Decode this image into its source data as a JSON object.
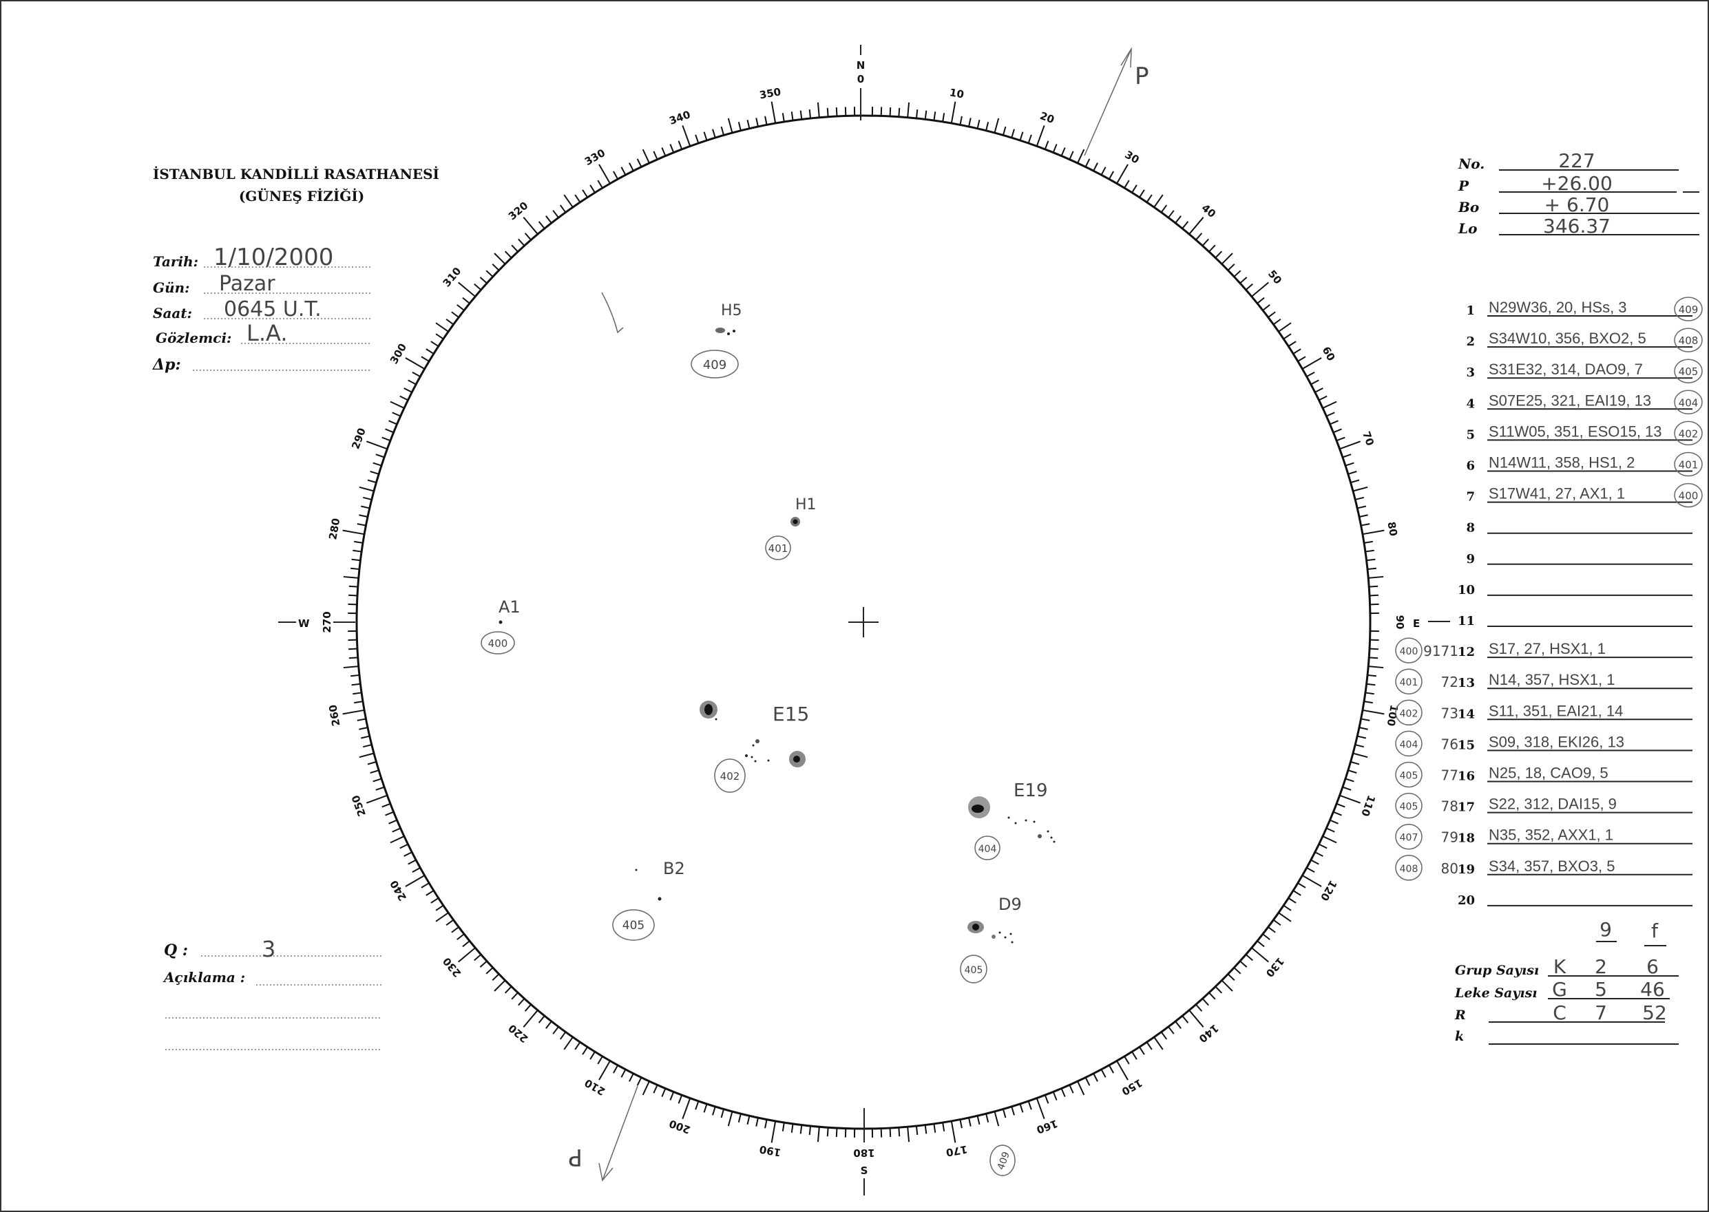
{
  "header": {
    "institution": "İSTANBUL KANDİLLİ RASATHANESİ",
    "department": "(GÜNEŞ FİZİĞİ)"
  },
  "fields": {
    "tarih_label": "Tarih:",
    "tarih_value": "1/10/2000",
    "gun_label": "Gün:",
    "gun_value": "Pazar",
    "saat_label": "Saat:",
    "saat_value": "0645 U.T.",
    "gozlemci_label": "Gözlemci:",
    "gozlemci_value": "L.A.",
    "dp_label": "Δp:",
    "q_label": "Q :",
    "q_value": "3",
    "aciklama_label": "Açıklama :"
  },
  "params": {
    "no_label": "No.",
    "no_value": "227",
    "p_label": "P",
    "p_value": "+26.00",
    "bo_label": "Bo",
    "bo_value": "+ 6.70",
    "lo_label": "Lo",
    "lo_value": "346.37"
  },
  "rows": [
    {
      "n": "1",
      "text": "N29W36, 20, HSs, 3",
      "code": "409",
      "side_code": "",
      "side_num": ""
    },
    {
      "n": "2",
      "text": "S34W10, 356, BXO2, 5",
      "code": "408",
      "side_code": "",
      "side_num": ""
    },
    {
      "n": "3",
      "text": "S31E32, 314, DAO9, 7",
      "code": "405",
      "side_code": "",
      "side_num": ""
    },
    {
      "n": "4",
      "text": "S07E25, 321, EAI19, 13",
      "code": "404",
      "side_code": "",
      "side_num": ""
    },
    {
      "n": "5",
      "text": "S11W05, 351, ESO15, 13",
      "code": "402",
      "side_code": "",
      "side_num": ""
    },
    {
      "n": "6",
      "text": "N14W11, 358, HS1, 2",
      "code": "401",
      "side_code": "",
      "side_num": ""
    },
    {
      "n": "7",
      "text": "S17W41, 27, AX1, 1",
      "code": "400",
      "side_code": "",
      "side_num": ""
    },
    {
      "n": "8",
      "text": "",
      "code": "",
      "side_code": "",
      "side_num": ""
    },
    {
      "n": "9",
      "text": "",
      "code": "",
      "side_code": "",
      "side_num": ""
    },
    {
      "n": "10",
      "text": "",
      "code": "",
      "side_code": "",
      "side_num": ""
    },
    {
      "n": "11",
      "text": "",
      "code": "",
      "side_code": "",
      "side_num": ""
    },
    {
      "n": "12",
      "text": "S17, 27, HSX1, 1",
      "code": "",
      "side_code": "400",
      "side_num": "9171"
    },
    {
      "n": "13",
      "text": "N14, 357, HSX1, 1",
      "code": "",
      "side_code": "401",
      "side_num": "72"
    },
    {
      "n": "14",
      "text": "S11, 351, EAI21, 14",
      "code": "",
      "side_code": "402",
      "side_num": "73"
    },
    {
      "n": "15",
      "text": "S09, 318, EKI26, 13",
      "code": "",
      "side_code": "404",
      "side_num": "76"
    },
    {
      "n": "16",
      "text": "N25, 18, CAO9, 5",
      "code": "",
      "side_code": "405",
      "side_num": "77"
    },
    {
      "n": "17",
      "text": "S22, 312, DAI15, 9",
      "code": "",
      "side_code": "405",
      "side_num": "78"
    },
    {
      "n": "18",
      "text": "N35, 352, AXX1, 1",
      "code": "",
      "side_code": "407",
      "side_num": "79"
    },
    {
      "n": "19",
      "text": "S34, 357, BXO3, 5",
      "code": "",
      "side_code": "408",
      "side_num": "80"
    },
    {
      "n": "20",
      "text": "",
      "code": "",
      "side_code": "",
      "side_num": ""
    }
  ],
  "summary": {
    "col_g": "9",
    "col_f": "f",
    "grup_label": "Grup Sayısı",
    "grup_prefix": "K",
    "grup_g": "2",
    "grup_f": "6",
    "leke_label": "Leke Sayısı",
    "leke_prefix": "G",
    "leke_g": "5",
    "leke_f": "46",
    "r_label": "R",
    "r_prefix": "C",
    "r_g": "7",
    "r_f": "52",
    "k_label": "k"
  },
  "disk": {
    "north": "N",
    "south": "S",
    "west": "W",
    "east": "E",
    "north_num": "0",
    "south_num": "180",
    "west_num": "270",
    "east_num": "90",
    "scale_labels": [
      "10",
      "20",
      "30",
      "40",
      "50",
      "60",
      "70",
      "80",
      "100",
      "110",
      "120",
      "130",
      "140",
      "150",
      "160",
      "170",
      "190",
      "200",
      "210",
      "220",
      "230",
      "240",
      "250",
      "260",
      "280",
      "290",
      "300",
      "310",
      "320",
      "330",
      "340",
      "350"
    ],
    "p_top": "P",
    "p_bottom": "P",
    "groups": [
      {
        "label": "H5",
        "code": "409"
      },
      {
        "label": "H1",
        "code": "401"
      },
      {
        "label": "A1",
        "code": "400"
      },
      {
        "label": "E15",
        "code": "402"
      },
      {
        "label": "E19",
        "code": "404"
      },
      {
        "label": "B2",
        "code": "405"
      },
      {
        "label": "D9",
        "code": "405"
      }
    ],
    "bottom_code": "409"
  }
}
